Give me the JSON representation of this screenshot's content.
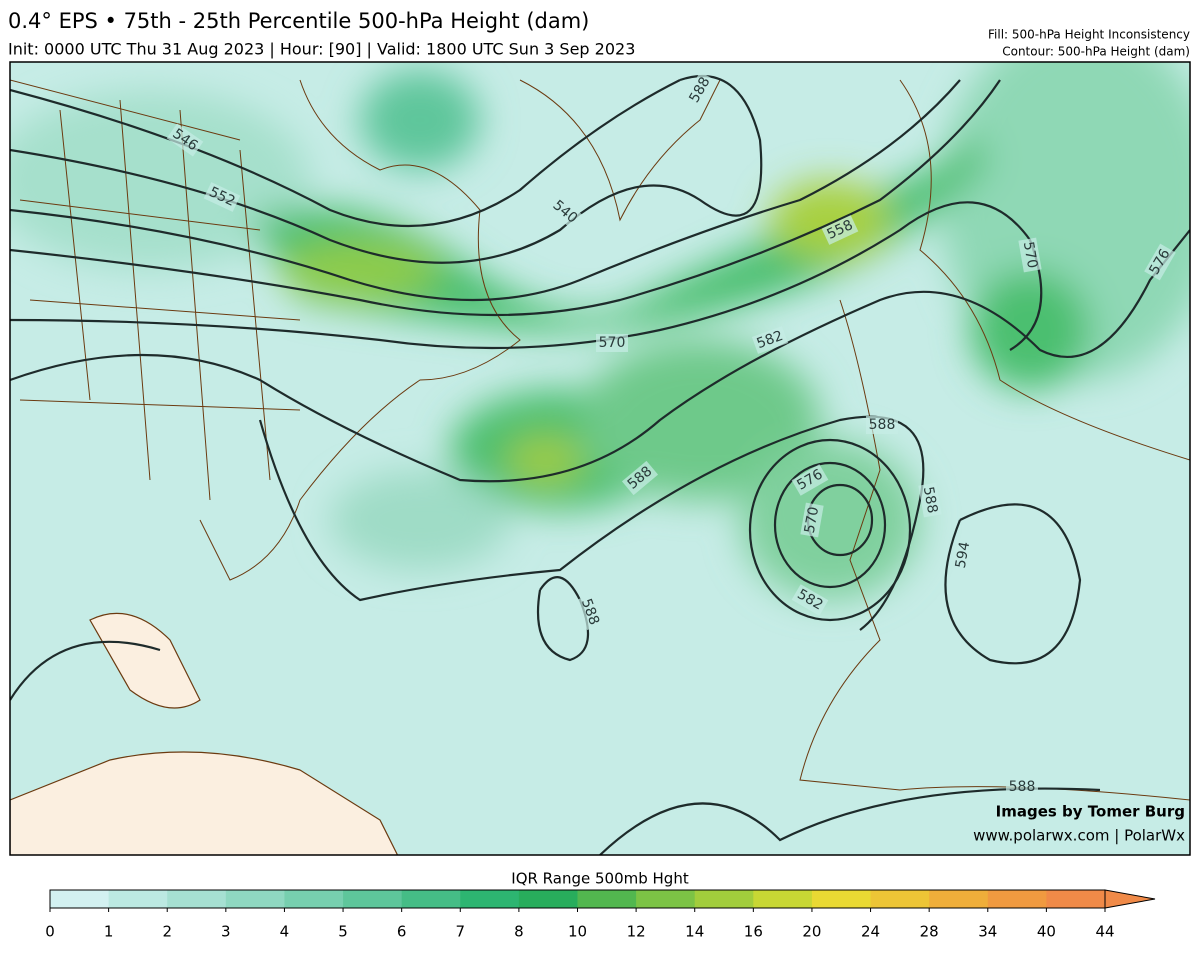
{
  "header": {
    "title": "0.4° EPS • 75th - 25th Percentile 500-hPa Height (dam)",
    "subtitle": "Init: 0000 UTC Thu 31 Aug 2023 | Hour: [90] | Valid: 1800 UTC Sun 3 Sep 2023",
    "fill_note": "Fill: 500-hPa Height Inconsistency",
    "contour_note": "Contour: 500-hPa Height (dam)"
  },
  "map": {
    "contour_labels": [
      "546",
      "552",
      "540",
      "558",
      "570",
      "582",
      "576",
      "588",
      "588",
      "576",
      "570",
      "582",
      "588",
      "594",
      "588",
      "588",
      "570",
      "588"
    ],
    "credits": [
      "Images by Tomer Burg",
      "www.polarwx.com | PolarWx"
    ]
  },
  "colorbar": {
    "label": "IQR Range 500mb Hght",
    "ticks": [
      0,
      1,
      2,
      3,
      4,
      5,
      6,
      7,
      8,
      10,
      12,
      14,
      16,
      20,
      24,
      28,
      34,
      40,
      44
    ],
    "colors": [
      "#d3f1f1",
      "#bce9e2",
      "#a6e0d2",
      "#8fd8c1",
      "#77cfaf",
      "#5ec69b",
      "#45bd86",
      "#2db571",
      "#28ad5c",
      "#52b74f",
      "#7cc345",
      "#a2cd3c",
      "#c8d734",
      "#e9d933",
      "#edc536",
      "#efae3a",
      "#f09a40",
      "#f08a48"
    ]
  }
}
